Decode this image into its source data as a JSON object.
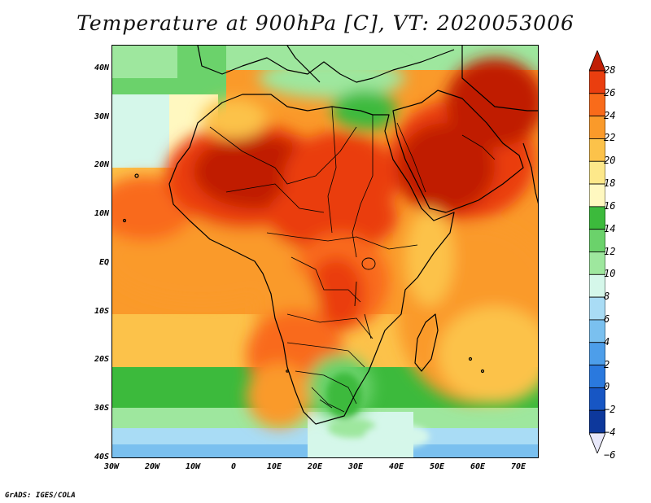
{
  "title": "Temperature at 900hPa [C], VT: 2020053006",
  "footer": "GrADS: IGES/COLA",
  "map": {
    "region": "Africa and Arabian Peninsula",
    "lon_range": [
      -30,
      75
    ],
    "lat_range": [
      -40,
      45
    ],
    "lat_ticks": [
      {
        "value": 40,
        "label": "40N"
      },
      {
        "value": 30,
        "label": "30N"
      },
      {
        "value": 20,
        "label": "20N"
      },
      {
        "value": 10,
        "label": "10N"
      },
      {
        "value": 0,
        "label": "EQ"
      },
      {
        "value": -10,
        "label": "10S"
      },
      {
        "value": -20,
        "label": "20S"
      },
      {
        "value": -30,
        "label": "30S"
      },
      {
        "value": -40,
        "label": "40S"
      }
    ],
    "lon_ticks": [
      {
        "value": -30,
        "label": "30W"
      },
      {
        "value": -20,
        "label": "20W"
      },
      {
        "value": -10,
        "label": "10W"
      },
      {
        "value": 0,
        "label": "0"
      },
      {
        "value": 10,
        "label": "10E"
      },
      {
        "value": 20,
        "label": "20E"
      },
      {
        "value": 30,
        "label": "30E"
      },
      {
        "value": 40,
        "label": "40E"
      },
      {
        "value": 50,
        "label": "50E"
      },
      {
        "value": 60,
        "label": "60E"
      },
      {
        "value": 70,
        "label": "70E"
      }
    ]
  },
  "colorbar": {
    "labels": [
      "28",
      "26",
      "24",
      "22",
      "20",
      "18",
      "16",
      "14",
      "12",
      "10",
      "8",
      "6",
      "4",
      "2",
      "0",
      "−2",
      "−4",
      "−6"
    ],
    "colors": [
      "#c01f06",
      "#ea3e0f",
      "#f96b1a",
      "#fa9a2a",
      "#fcc24a",
      "#fde88a",
      "#fff8c0",
      "#3cba3c",
      "#6bd26b",
      "#9ee79e",
      "#d5f7ea",
      "#a9dcf5",
      "#7ac0ef",
      "#4d9eea",
      "#2a79de",
      "#1756c4",
      "#0d389c",
      "#06206c"
    ]
  }
}
